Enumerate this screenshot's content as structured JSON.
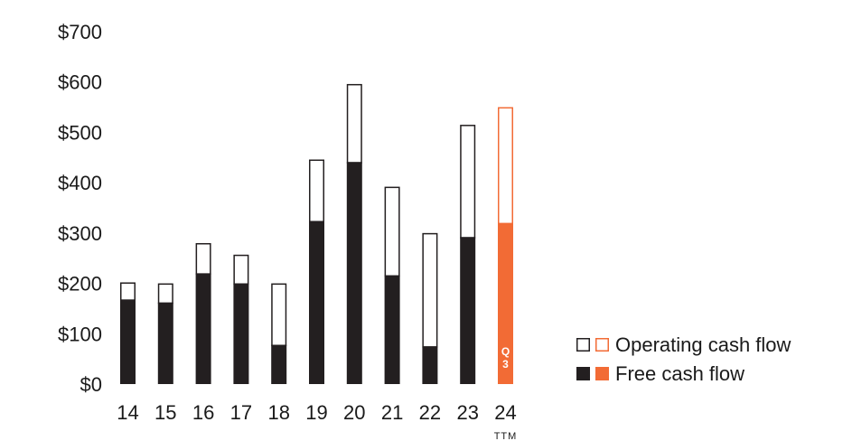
{
  "chart_data": {
    "type": "bar",
    "categories": [
      "14",
      "15",
      "16",
      "17",
      "18",
      "19",
      "20",
      "21",
      "22",
      "23",
      "24"
    ],
    "category_sublabels": [
      "",
      "",
      "",
      "",
      "",
      "",
      "",
      "",
      "",
      "",
      "TTM"
    ],
    "series": [
      {
        "name": "Operating cash flow",
        "values": [
          202,
          200,
          280,
          257,
          200,
          446,
          596,
          392,
          300,
          515,
          550
        ]
      },
      {
        "name": "Free cash flow",
        "values": [
          168,
          162,
          220,
          200,
          78,
          324,
          441,
          216,
          75,
          292,
          320
        ]
      }
    ],
    "highlight_index": 10,
    "highlight_label_lines": [
      "Q",
      "3"
    ],
    "yticks": [
      "$0",
      "$100",
      "$200",
      "$300",
      "$400",
      "$500",
      "$600",
      "$700"
    ],
    "ylim": [
      0,
      700
    ],
    "title": "",
    "xlabel": "",
    "ylabel": "",
    "grid": false,
    "legend": {
      "placement": "bottom-right",
      "entries": [
        "Operating cash flow",
        "Free cash flow"
      ]
    },
    "colors": {
      "base": "#231f20",
      "highlight": "#f26b35",
      "outline": "#231f20",
      "background": "#ffffff"
    }
  }
}
